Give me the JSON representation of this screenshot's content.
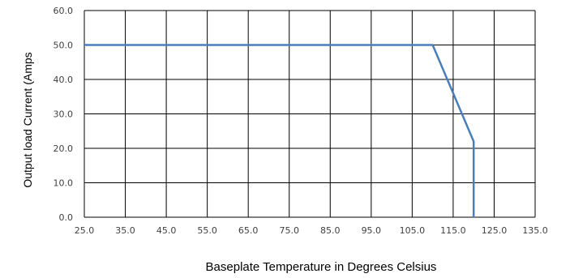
{
  "chart_data": {
    "type": "line",
    "title": "",
    "xlabel": "Baseplate Temperature in Degrees Celsius",
    "ylabel": "Output load Current (Amps",
    "xlim": [
      25,
      135
    ],
    "ylim": [
      0,
      60
    ],
    "x_ticks": [
      "25.0",
      "35.0",
      "45.0",
      "55.0",
      "65.0",
      "75.0",
      "85.0",
      "95.0",
      "105.0",
      "115.0",
      "125.0",
      "135.0"
    ],
    "y_ticks": [
      "0.0",
      "10.0",
      "20.0",
      "30.0",
      "40.0",
      "50.0",
      "60.0"
    ],
    "grid": true,
    "series": [
      {
        "color": "#4a7ebb",
        "points": [
          {
            "x": 25,
            "y": 50
          },
          {
            "x": 110,
            "y": 50
          },
          {
            "x": 120,
            "y": 22
          },
          {
            "x": 120,
            "y": 0
          }
        ]
      }
    ]
  }
}
